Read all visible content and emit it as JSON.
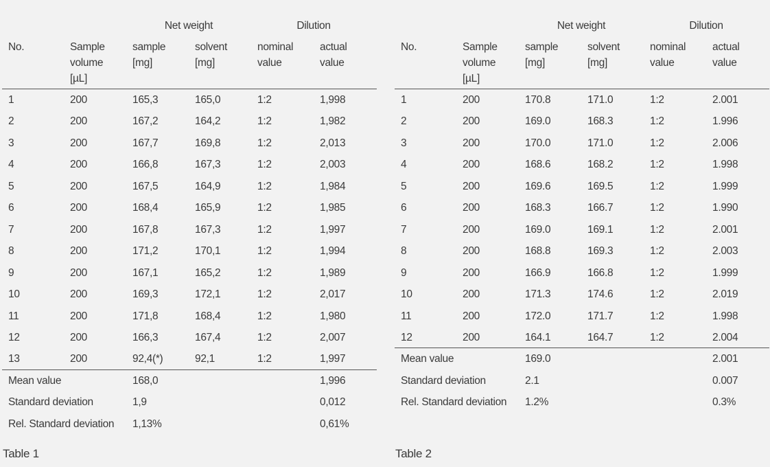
{
  "tables": [
    {
      "group_headers": [
        "Net weight",
        "Dilution"
      ],
      "columns": [
        [
          "No."
        ],
        [
          "Sample",
          "volume",
          "[µL]"
        ],
        [
          "sample",
          "[mg]"
        ],
        [
          "solvent",
          "[mg]"
        ],
        [
          "nominal",
          "value"
        ],
        [
          "actual",
          "value"
        ]
      ],
      "rows": [
        [
          "1",
          "200",
          "165,3",
          "165,0",
          "1:2",
          "1,998"
        ],
        [
          "2",
          "200",
          "167,2",
          "164,2",
          "1:2",
          "1,982"
        ],
        [
          "3",
          "200",
          "167,7",
          "169,8",
          "1:2",
          "2,013"
        ],
        [
          "4",
          "200",
          "166,8",
          "167,3",
          "1:2",
          "2,003"
        ],
        [
          "5",
          "200",
          "167,5",
          "164,9",
          "1:2",
          "1,984"
        ],
        [
          "6",
          "200",
          "168,4",
          "165,9",
          "1:2",
          "1,985"
        ],
        [
          "7",
          "200",
          "167,8",
          "167,3",
          "1:2",
          "1,997"
        ],
        [
          "8",
          "200",
          "171,2",
          "170,1",
          "1:2",
          "1,994"
        ],
        [
          "9",
          "200",
          "167,1",
          "165,2",
          "1:2",
          "1,989"
        ],
        [
          "10",
          "200",
          "169,3",
          "172,1",
          "1:2",
          "2,017"
        ],
        [
          "11",
          "200",
          "171,8",
          "168,4",
          "1:2",
          "1,980"
        ],
        [
          "12",
          "200",
          "166,3",
          "167,4",
          "1:2",
          "2,007"
        ],
        [
          "13",
          "200",
          "92,4(*)",
          "92,1",
          "1:2",
          "1,997"
        ]
      ],
      "summary": [
        {
          "label": "Mean value",
          "sample": "168,0",
          "actual": "1,996"
        },
        {
          "label": "Standard deviation",
          "sample": "1,9",
          "actual": "0,012"
        },
        {
          "label": "Rel. Standard deviation",
          "sample": "1,13%",
          "actual": "0,61%"
        }
      ],
      "caption": "Table 1"
    },
    {
      "group_headers": [
        "Net weight",
        "Dilution"
      ],
      "columns": [
        [
          "No."
        ],
        [
          "Sample",
          "volume",
          "[µL]"
        ],
        [
          "sample",
          "[mg]"
        ],
        [
          "solvent",
          "[mg]"
        ],
        [
          "nominal",
          "value"
        ],
        [
          "actual",
          "value"
        ]
      ],
      "rows": [
        [
          "1",
          "200",
          "170.8",
          "171.0",
          "1:2",
          "2.001"
        ],
        [
          "2",
          "200",
          "169.0",
          "168.3",
          "1:2",
          "1.996"
        ],
        [
          "3",
          "200",
          "170.0",
          "171.0",
          "1:2",
          "2.006"
        ],
        [
          "4",
          "200",
          "168.6",
          "168.2",
          "1:2",
          "1.998"
        ],
        [
          "5",
          "200",
          "169.6",
          "169.5",
          "1:2",
          "1.999"
        ],
        [
          "6",
          "200",
          "168.3",
          "166.7",
          "1:2",
          "1.990"
        ],
        [
          "7",
          "200",
          "169.0",
          "169.1",
          "1:2",
          "2.001"
        ],
        [
          "8",
          "200",
          "168.8",
          "169.3",
          "1:2",
          "2.003"
        ],
        [
          "9",
          "200",
          "166.9",
          "166.8",
          "1:2",
          "1.999"
        ],
        [
          "10",
          "200",
          "171.3",
          "174.6",
          "1:2",
          "2.019"
        ],
        [
          "11",
          "200",
          "172.0",
          "171.7",
          "1:2",
          "1.998"
        ],
        [
          "12",
          "200",
          "164.1",
          "164.7",
          "1:2",
          "2.004"
        ]
      ],
      "summary": [
        {
          "label": "Mean value",
          "sample": "169.0",
          "actual": "2.001"
        },
        {
          "label": "Standard deviation",
          "sample": "2.1",
          "actual": "0.007"
        },
        {
          "label": "Rel. Standard deviation",
          "sample": "1.2%",
          "actual": "0.3%"
        }
      ],
      "caption": "Table 2"
    }
  ]
}
